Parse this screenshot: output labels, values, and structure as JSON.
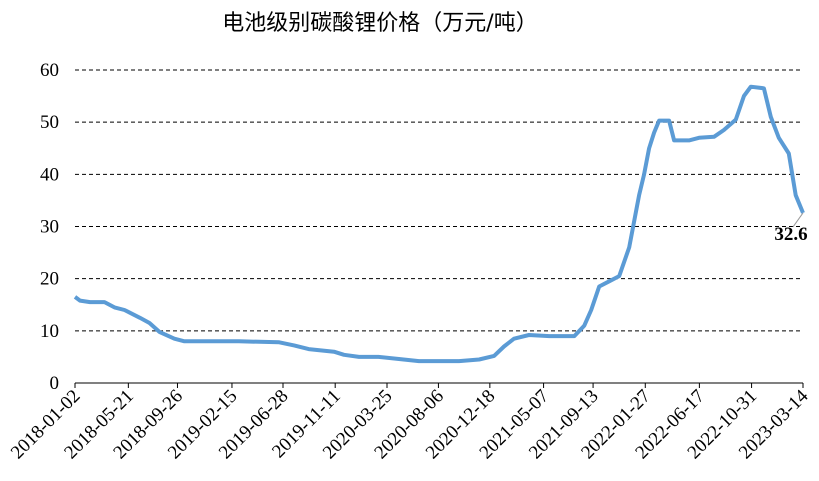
{
  "chart_data": {
    "type": "line",
    "title": "电池级别碳酸锂价格（万元/吨）",
    "x": [
      "2018-01-02",
      "2018-01-15",
      "2018-02-10",
      "2018-03-20",
      "2018-04-15",
      "2018-05-11",
      "2018-06-20",
      "2018-07-15",
      "2018-08-10",
      "2018-09-18",
      "2018-10-14",
      "2018-11-22",
      "2019-03-05",
      "2019-06-18",
      "2019-07-27",
      "2019-09-03",
      "2019-11-08",
      "2019-12-04",
      "2020-01-12",
      "2020-03-03",
      "2020-04-25",
      "2020-06-16",
      "2020-09-29",
      "2020-11-20",
      "2020-12-29",
      "2021-01-24",
      "2021-02-19",
      "2021-03-30",
      "2021-05-22",
      "2021-07-26",
      "2021-08-21",
      "2021-09-08",
      "2021-09-29",
      "2021-10-25",
      "2021-11-20",
      "2021-12-16",
      "2022-01-11",
      "2022-01-24",
      "2022-02-06",
      "2022-02-19",
      "2022-03-04",
      "2022-03-30",
      "2022-04-12",
      "2022-05-21",
      "2022-06-16",
      "2022-07-25",
      "2022-08-20",
      "2022-09-20",
      "2022-10-11",
      "2022-10-29",
      "2022-12-02",
      "2022-12-20",
      "2023-01-10",
      "2023-02-05",
      "2023-02-23",
      "2023-03-14"
    ],
    "values": [
      16.5,
      15.8,
      15.5,
      15.5,
      14.5,
      14,
      12.5,
      11.5,
      9.8,
      8.5,
      8,
      8,
      8,
      7.8,
      7.2,
      6.5,
      6,
      5.4,
      5,
      5,
      4.6,
      4.2,
      4.2,
      4.5,
      5.2,
      7,
      8.5,
      9.2,
      9,
      9,
      11,
      14,
      18.5,
      19.5,
      20.5,
      26,
      36,
      40,
      45,
      48,
      50.3,
      50.3,
      46.5,
      46.5,
      47,
      47.2,
      48.5,
      50.5,
      55,
      56.8,
      56.5,
      51,
      47,
      44,
      36,
      32.6
    ],
    "color": "#5b9bd5",
    "ylim": [
      0,
      60
    ],
    "yticks": [
      0,
      10,
      20,
      30,
      40,
      50,
      60
    ],
    "xlim": [
      "2018-01-02",
      "2023-03-14"
    ],
    "xticks": [
      "2018-01-02",
      "2018-05-21",
      "2018-09-26",
      "2019-02-15",
      "2019-06-28",
      "2019-11-11",
      "2020-03-25",
      "2020-08-06",
      "2020-12-18",
      "2021-05-07",
      "2021-09-13",
      "2022-01-27",
      "2022-06-17",
      "2022-10-31",
      "2023-03-14"
    ],
    "grid": true
  }
}
